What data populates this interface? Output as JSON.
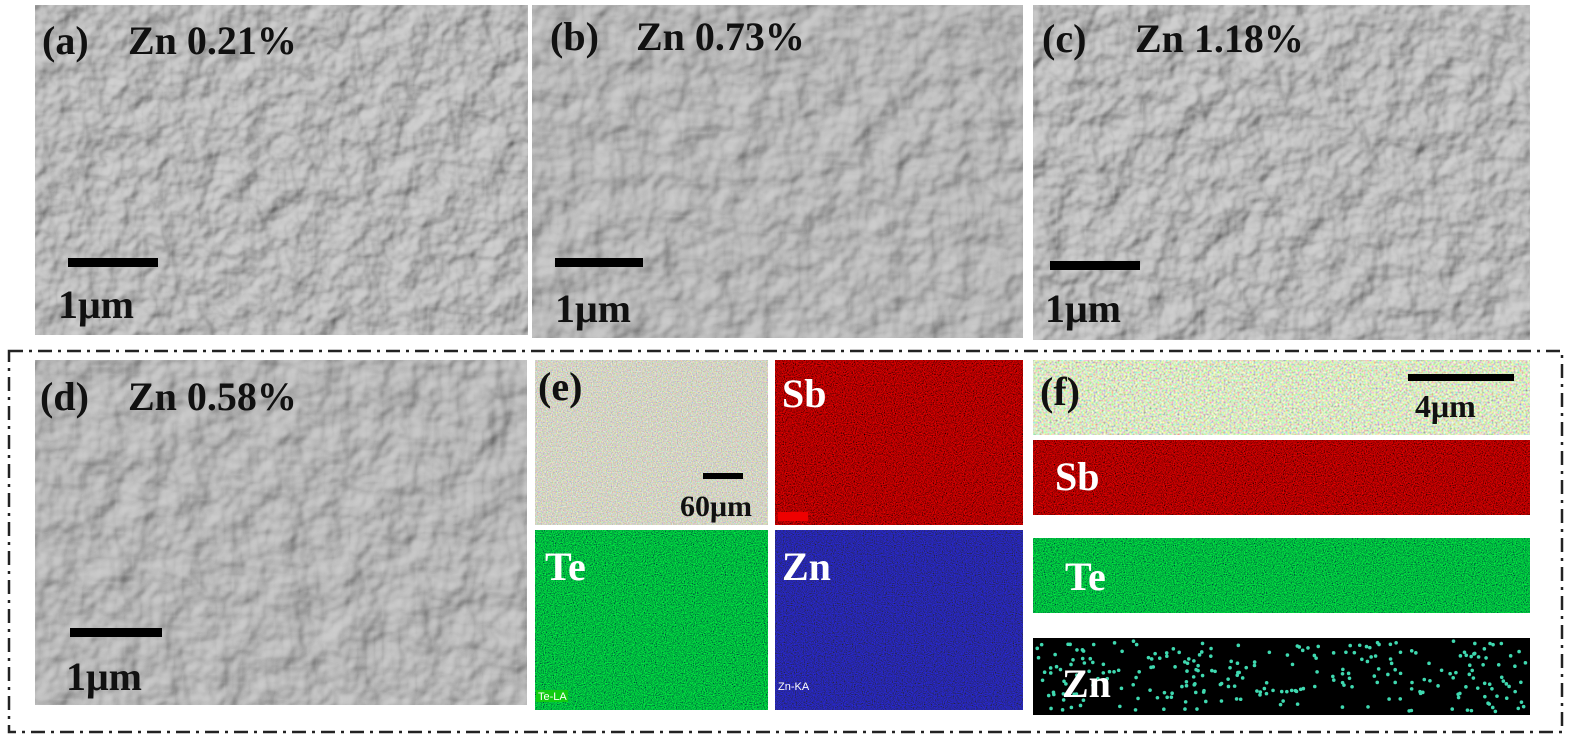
{
  "panels": [
    {
      "label": "(a)",
      "title": "Zn 0.21%",
      "scale_bar": "1μm"
    },
    {
      "label": "(b)",
      "title": "Zn 0.73%",
      "scale_bar": "1μm"
    },
    {
      "label": "(c)",
      "title": "Zn 1.18%",
      "scale_bar": "1μm"
    },
    {
      "label": "(d)",
      "title": "Zn 0.58%",
      "scale_bar": "1μm"
    }
  ],
  "eds_map": {
    "label": "(e)",
    "scale_bar": "60μm",
    "maps": [
      "Sb",
      "Te",
      "Zn"
    ],
    "map_tags": [
      "Te-LA",
      "Zn-KA"
    ]
  },
  "line_map": {
    "label": "(f)",
    "scale_bar": "4μm",
    "maps": [
      "Sb",
      "Te",
      "Zn"
    ]
  }
}
